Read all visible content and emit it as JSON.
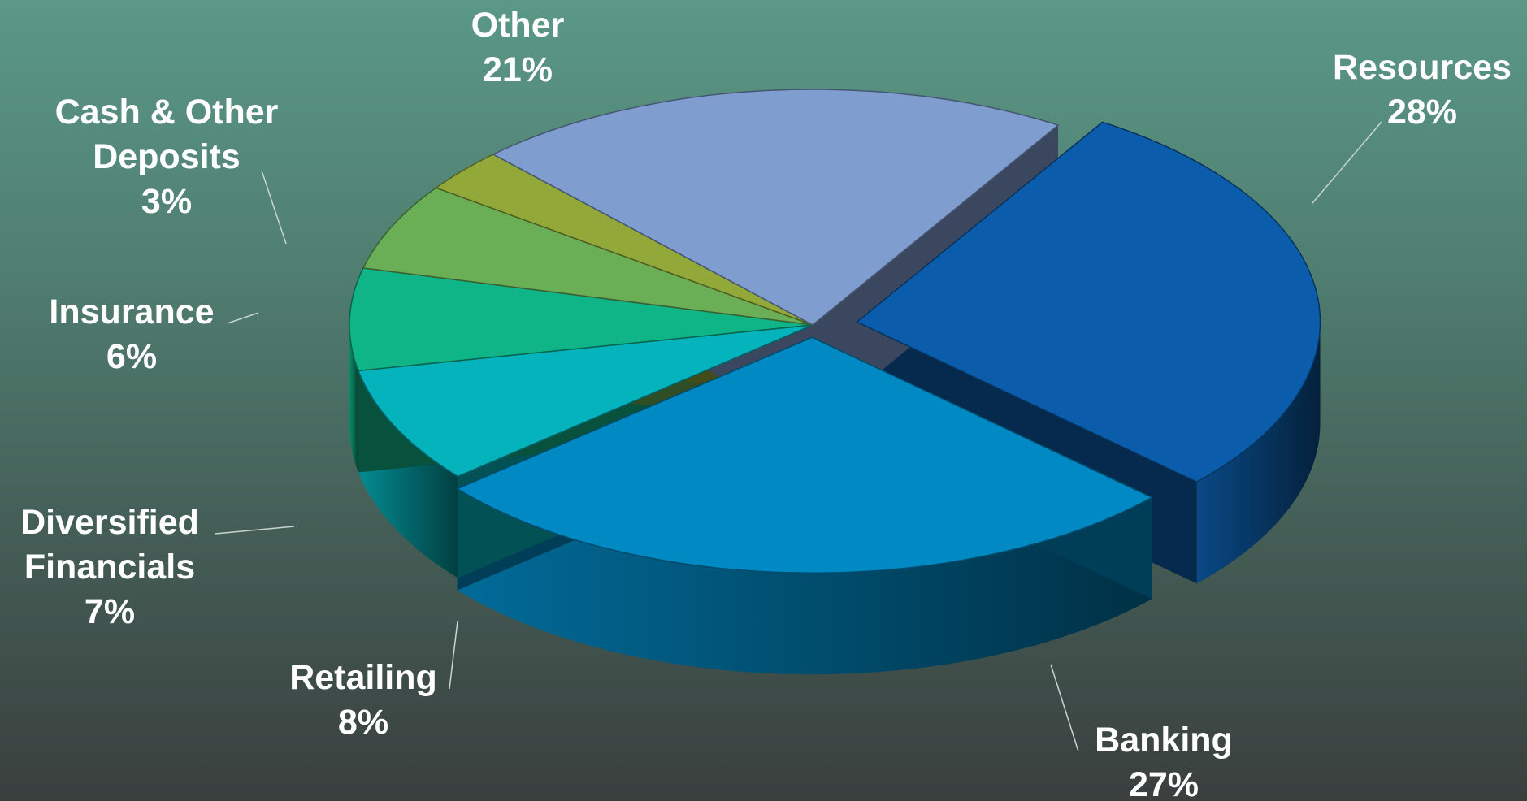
{
  "chart_data": {
    "type": "pie",
    "style": "3d-exploded",
    "title": "",
    "slices": [
      {
        "label": [
          "Resources"
        ],
        "value": 28,
        "percent_label": "28%",
        "color": "#0b5dab"
      },
      {
        "label": [
          "Banking"
        ],
        "value": 27,
        "percent_label": "27%",
        "color": "#0189c4"
      },
      {
        "label": [
          "Retailing"
        ],
        "value": 8,
        "percent_label": "8%",
        "color": "#04b3bb"
      },
      {
        "label": [
          "Diversified",
          "Financials"
        ],
        "value": 7,
        "percent_label": "7%",
        "color": "#0fb587"
      },
      {
        "label": [
          "Insurance"
        ],
        "value": 6,
        "percent_label": "6%",
        "color": "#6aae55"
      },
      {
        "label": [
          "Cash & Other",
          "Deposits"
        ],
        "value": 3,
        "percent_label": "3%",
        "color": "#92a93a"
      },
      {
        "label": [
          "Other"
        ],
        "value": 21,
        "percent_label": "21%",
        "color": "#809dd0"
      }
    ]
  }
}
